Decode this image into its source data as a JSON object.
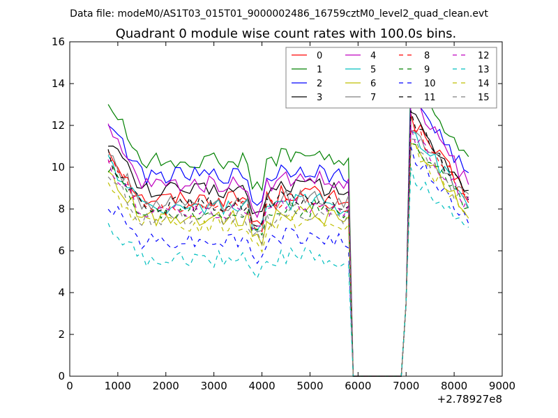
{
  "chart_data": {
    "type": "line",
    "suptitle": "Data file: modeM0/AS1T03_015T01_9000002486_16759cztM0_level2_quad_clean.evt",
    "title": "Quadrant 0 module wise count rates with 100.0s bins.",
    "xlabel": "",
    "ylabel": "",
    "x_offset_label": "+2.78927e8",
    "xlim": [
      0,
      9000
    ],
    "ylim": [
      0,
      16
    ],
    "xticks": [
      0,
      1000,
      2000,
      3000,
      4000,
      5000,
      6000,
      7000,
      8000,
      9000
    ],
    "yticks": [
      0,
      2,
      4,
      6,
      8,
      10,
      12,
      14,
      16
    ],
    "legend_position": "top-right",
    "legend_columns": 4,
    "x_segments": {
      "a": {
        "start": 800,
        "end": 5800,
        "step": 100
      },
      "b": {
        "start": 7100,
        "end": 8300,
        "step": 100
      }
    },
    "gap_points": [
      [
        5900,
        0
      ],
      [
        6900,
        0
      ],
      [
        7000,
        3.5
      ]
    ],
    "series": [
      {
        "name": "0",
        "color": "#ff0000",
        "dash": "solid",
        "base": 8.5,
        "peak": 12.3
      },
      {
        "name": "1",
        "color": "#008000",
        "dash": "solid",
        "base": 10.3,
        "peak": 14.5
      },
      {
        "name": "2",
        "color": "#0000ff",
        "dash": "solid",
        "base": 9.6,
        "peak": 13.6
      },
      {
        "name": "3",
        "color": "#000000",
        "dash": "solid",
        "base": 8.9,
        "peak": 12.6
      },
      {
        "name": "4",
        "color": "#bf00bf",
        "dash": "solid",
        "base": 9.2,
        "peak": 13.2
      },
      {
        "name": "5",
        "color": "#00bfbf",
        "dash": "solid",
        "base": 8.1,
        "peak": 11.8
      },
      {
        "name": "6",
        "color": "#bfbf00",
        "dash": "solid",
        "base": 7.6,
        "peak": 11.3
      },
      {
        "name": "7",
        "color": "#808080",
        "dash": "solid",
        "base": 8.3,
        "peak": 12.0
      },
      {
        "name": "8",
        "color": "#ff0000",
        "dash": "dashed",
        "base": 8.1,
        "peak": 12.1
      },
      {
        "name": "9",
        "color": "#008000",
        "dash": "dashed",
        "base": 7.8,
        "peak": 11.5
      },
      {
        "name": "10",
        "color": "#0000ff",
        "dash": "dashed",
        "base": 6.5,
        "peak": 10.6
      },
      {
        "name": "11",
        "color": "#000000",
        "dash": "dashed",
        "base": 8.2,
        "peak": 12.4
      },
      {
        "name": "12",
        "color": "#bf00bf",
        "dash": "dashed",
        "base": 7.9,
        "peak": 11.7
      },
      {
        "name": "13",
        "color": "#00bfbf",
        "dash": "dashed",
        "base": 5.6,
        "peak": 9.8
      },
      {
        "name": "14",
        "color": "#bfbf00",
        "dash": "dashed",
        "base": 7.2,
        "peak": 11.0
      },
      {
        "name": "15",
        "color": "#808080",
        "dash": "dashed",
        "base": 7.5,
        "peak": 11.3
      }
    ]
  }
}
